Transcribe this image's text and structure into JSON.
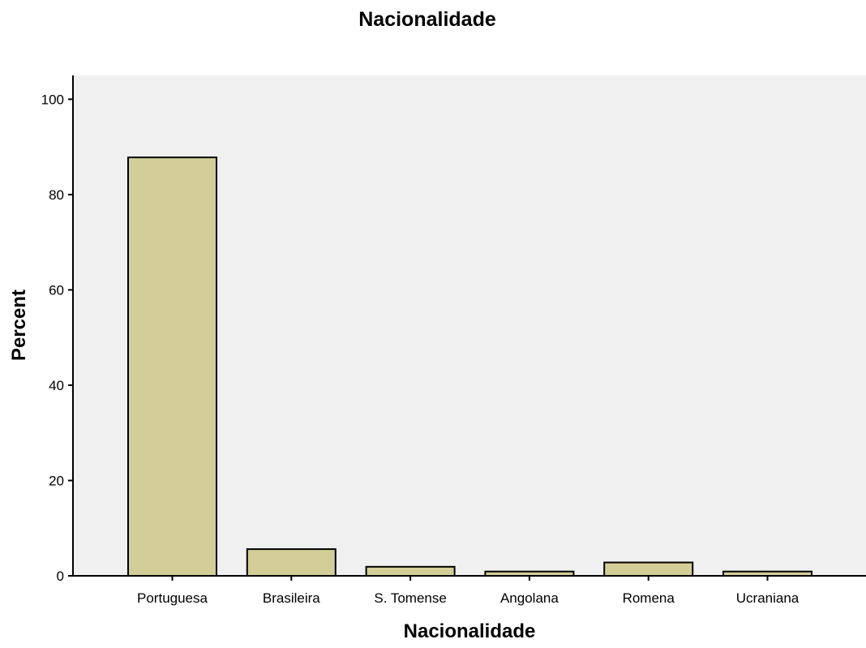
{
  "chart_data": {
    "type": "bar",
    "title": "Nacionalidade",
    "xlabel": "Nacionalidade",
    "ylabel": "Percent",
    "categories": [
      "Portuguesa",
      "Brasileira",
      "S. Tomense",
      "Angolana",
      "Romena",
      "Ucraniana"
    ],
    "values": [
      87.8,
      5.6,
      1.9,
      0.9,
      2.8,
      0.9
    ],
    "ylim": [
      0,
      105
    ],
    "yticks": [
      "0",
      "20",
      "40",
      "60",
      "80",
      "100"
    ],
    "grid": false,
    "legend": "none",
    "colors": {
      "plot_background": "#f0f0f0",
      "bar_fill": "#d3ce98",
      "bar_stroke": "#000000"
    }
  }
}
